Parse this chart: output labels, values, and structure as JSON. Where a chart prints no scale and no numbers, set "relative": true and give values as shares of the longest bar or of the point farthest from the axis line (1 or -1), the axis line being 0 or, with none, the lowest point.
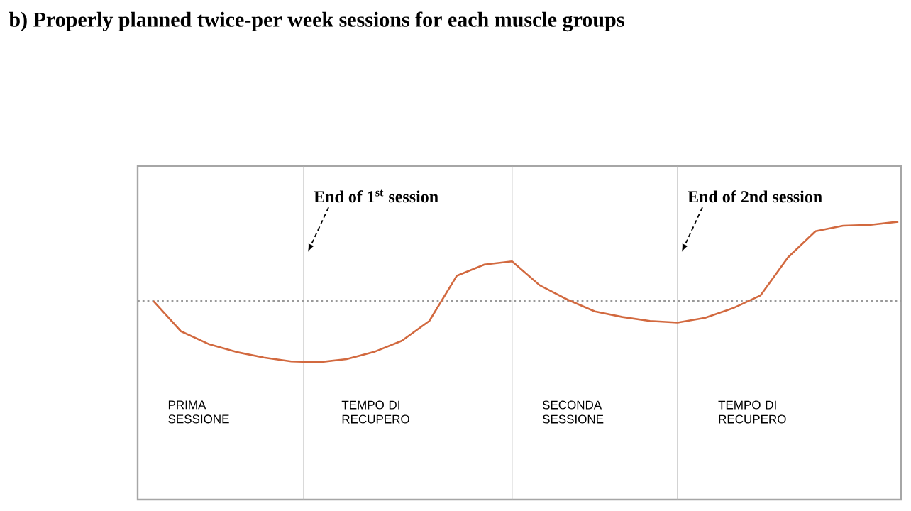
{
  "chart_data": {
    "type": "line",
    "title": "b) Properly planned twice-per week sessions for each muscle groups",
    "relative": true,
    "marker": "none",
    "line_style": "solid",
    "categories": [
      null,
      null,
      null,
      null,
      null,
      null,
      null,
      null,
      null,
      null,
      null,
      null,
      null,
      null,
      null,
      null,
      null,
      null,
      null,
      null,
      null,
      null,
      null,
      null,
      null,
      null,
      null,
      null
    ],
    "series": [
      {
        "color": "#d2693f",
        "values": [
          0,
          -0.38,
          -0.54,
          -0.64,
          -0.71,
          -0.76,
          -0.77,
          -0.73,
          -0.64,
          -0.5,
          -0.25,
          0.32,
          0.46,
          0.5,
          0.2,
          0.02,
          -0.13,
          -0.2,
          -0.25,
          -0.27,
          -0.21,
          -0.09,
          0.07,
          0.55,
          0.88,
          0.95,
          0.96,
          1.0
        ]
      }
    ],
    "ref_lines": [
      {
        "axis": "y",
        "value": 0,
        "color": "#999999",
        "line_style": "dotted"
      }
    ],
    "annotations": [
      "End of 1$^{st}$ session",
      "End of 2nd session",
      "PRIMA SESSIONE",
      "TEMPO DI RECUPERO",
      "SECONDA SESSIONE",
      "TEMPO DI RECUPERO"
    ]
  }
}
